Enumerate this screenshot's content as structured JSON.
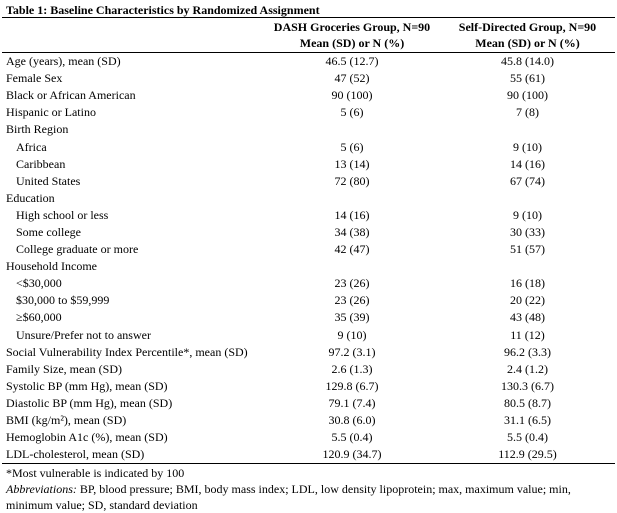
{
  "title": "Table 1: Baseline Characteristics by Randomized Assignment",
  "table": {
    "columns": [
      {
        "name": "DASH Groceries Group, N=90",
        "subtitle": "Mean (SD) or N (%)"
      },
      {
        "name": "Self-Directed Group, N=90",
        "subtitle": "Mean (SD) or N (%)"
      }
    ],
    "rows": [
      {
        "label": "Age (years), mean (SD)",
        "values": [
          "46.5 (12.7)",
          "45.8 (14.0)"
        ]
      },
      {
        "label": "Female Sex",
        "values": [
          "47 (52)",
          "55 (61)"
        ]
      },
      {
        "label": "Black or African American",
        "values": [
          "90 (100)",
          "90 (100)"
        ]
      },
      {
        "label": "Hispanic or Latino",
        "values": [
          "5 (6)",
          "7 (8)"
        ]
      },
      {
        "label": "Birth Region",
        "items": [
          {
            "label": "Africa",
            "values": [
              "5 (6)",
              "9 (10)"
            ]
          },
          {
            "label": "Caribbean",
            "values": [
              "13 (14)",
              "14 (16)"
            ]
          },
          {
            "label": "United States",
            "values": [
              "72 (80)",
              "67 (74)"
            ]
          }
        ]
      },
      {
        "label": "Education",
        "items": [
          {
            "label": "High school or less",
            "values": [
              "14 (16)",
              "9 (10)"
            ]
          },
          {
            "label": "Some college",
            "values": [
              "34 (38)",
              "30 (33)"
            ]
          },
          {
            "label": "College graduate or more",
            "values": [
              "42 (47)",
              "51 (57)"
            ]
          }
        ]
      },
      {
        "label": "Household Income",
        "items": [
          {
            "label": "<$30,000",
            "values": [
              "23 (26)",
              "16 (18)"
            ]
          },
          {
            "label": "$30,000 to $59,999",
            "values": [
              "23 (26)",
              "20 (22)"
            ]
          },
          {
            "label": "≥$60,000",
            "values": [
              "35 (39)",
              "43 (48)"
            ]
          },
          {
            "label": "Unsure/Prefer not to answer",
            "values": [
              "9 (10)",
              "11 (12)"
            ]
          }
        ]
      },
      {
        "label": "Social Vulnerability Index Percentile*, mean (SD)",
        "values": [
          "97.2 (3.1)",
          "96.2 (3.3)"
        ]
      },
      {
        "label": "Family Size, mean (SD)",
        "values": [
          "2.6 (1.3)",
          "2.4 (1.2)"
        ]
      },
      {
        "label": "Systolic BP (mm Hg), mean (SD)",
        "values": [
          "129.8 (6.7)",
          "130.3 (6.7)"
        ]
      },
      {
        "label": "Diastolic BP (mm Hg), mean (SD)",
        "values": [
          "79.1 (7.4)",
          "80.5 (8.7)"
        ]
      },
      {
        "label": "BMI (kg/m²), mean (SD)",
        "values": [
          "30.8 (6.0)",
          "31.1 (6.5)"
        ]
      },
      {
        "label": "Hemoglobin A1c (%), mean (SD)",
        "values": [
          "5.5 (0.4)",
          "5.5 (0.4)"
        ]
      },
      {
        "label": "LDL-cholesterol, mean (SD)",
        "values": [
          "120.9 (34.7)",
          "112.9 (29.5)"
        ]
      }
    ]
  },
  "footnotes": {
    "note": "*Most vulnerable is indicated by 100",
    "abbreviations_label": "Abbreviations:",
    "abbreviations": "BP, blood pressure; BMI, body mass index; LDL, low density lipoprotein; max, maximum value; min, minimum value; SD, standard deviation"
  }
}
